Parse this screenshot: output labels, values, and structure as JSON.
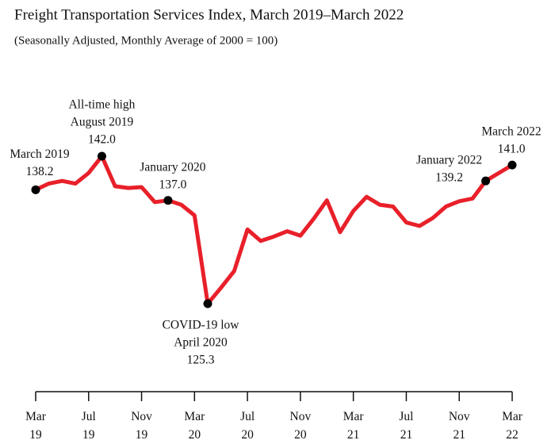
{
  "chart_data": {
    "type": "line",
    "title": "Freight Transportation Services Index, March 2019–March 2022",
    "subtitle": "(Seasonally Adjusted, Monthly Average of 2000 = 100)",
    "categories": [
      "Mar 19",
      null,
      null,
      null,
      "Jul 19",
      null,
      null,
      null,
      "Nov 19",
      null,
      null,
      null,
      "Mar 20",
      null,
      null,
      null,
      "Jul 20",
      null,
      null,
      null,
      "Nov 20",
      null,
      null,
      null,
      "Mar 21",
      null,
      null,
      null,
      "Jul 21",
      null,
      null,
      null,
      "Nov 21",
      null,
      null,
      null,
      "Mar 22"
    ],
    "series": [
      {
        "name": "Freight Transportation Services Index",
        "color": "#e8202a",
        "values": [
          138.2,
          138.9,
          139.2,
          138.9,
          140.1,
          142.0,
          138.6,
          138.4,
          138.5,
          136.8,
          137.0,
          136.5,
          135.3,
          125.3,
          127.1,
          129.0,
          133.7,
          132.4,
          132.9,
          133.5,
          133.0,
          134.9,
          137.0,
          133.4,
          135.8,
          137.4,
          136.5,
          136.3,
          134.5,
          134.1,
          135.0,
          136.3,
          136.9,
          137.2,
          139.2,
          140.1,
          141.0
        ]
      }
    ],
    "annotations": [
      {
        "index": 0,
        "text": [
          "March 2019"
        ],
        "value_label": "138.2"
      },
      {
        "index": 5,
        "text": [
          "All-time high",
          "August 2019"
        ],
        "value_label": "142.0"
      },
      {
        "index": 10,
        "text": [
          "January 2020"
        ],
        "value_label": "137.0"
      },
      {
        "index": 13,
        "text": [
          "COVID-19 low",
          "April 2020"
        ],
        "value_label": "125.3"
      },
      {
        "index": 34,
        "text": [
          "January 2022"
        ],
        "value_label": "139.2"
      },
      {
        "index": 36,
        "text": [
          "March 2022"
        ],
        "value_label": "141.0"
      }
    ]
  }
}
